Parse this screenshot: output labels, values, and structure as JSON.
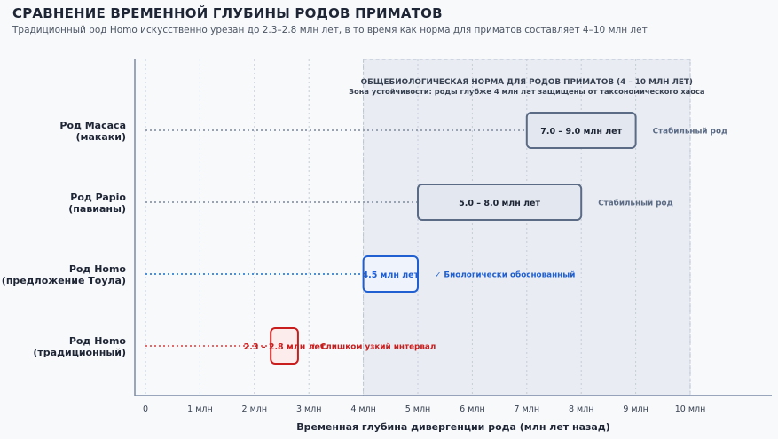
{
  "header": {
    "title": "СРАВНЕНИЕ ВРЕМЕННОЙ ГЛУБИНЫ РОДОВ ПРИМАТОВ",
    "subtitle": "Традиционный род Homo искусственно урезан до 2.3–2.8 млн лет, в то время как норма для приматов составляет 4–10 млн лет"
  },
  "chart_data": {
    "type": "bar",
    "orientation": "horizontal-range",
    "xlabel": "Временная глубина дивергенции рода (млн лет назад)",
    "xlim": [
      0,
      10
    ],
    "x_ticks": [
      "0",
      "1 млн",
      "2 млн",
      "3 млн",
      "4 млн",
      "5 млн",
      "6 млн",
      "7 млн",
      "8 млн",
      "9 млн",
      "10 млн"
    ],
    "grid": true,
    "zone": {
      "range": [
        4,
        10
      ],
      "title": "ОБЩЕБИОЛОГИЧЕСКАЯ НОРМА ДЛЯ РОДОВ ПРИМАТОВ (4 – 10 МЛН ЛЕТ)",
      "subtitle": "Зона устойчивости: роды глубже 4 млн лет защищены от таксономического хаоса"
    },
    "categories": [
      {
        "label_line1": "Род Macaca",
        "label_line2": "(макаки)",
        "range": [
          7.0,
          9.0
        ],
        "bar_label": "7.0 – 9.0 млн лет",
        "status": "Стабильный род",
        "style": "stable"
      },
      {
        "label_line1": "Род Papio",
        "label_line2": "(павианы)",
        "range": [
          5.0,
          8.0
        ],
        "bar_label": "5.0 – 8.0 млн лет",
        "status": "Стабильный род",
        "style": "stable"
      },
      {
        "label_line1": "Род Homo",
        "label_line2": "(предложение Тоула)",
        "range": [
          4.0,
          5.0
        ],
        "bar_label": "4.5 млн лет",
        "status": "✓ Биологически обоснованный",
        "style": "proposal"
      },
      {
        "label_line1": "Род Homo",
        "label_line2": "(традиционный)",
        "range": [
          2.3,
          2.8
        ],
        "bar_label": "2.3 – 2.8 млн лет",
        "status": "⚠ Слишком узкий интервал",
        "style": "narrow"
      }
    ]
  },
  "colors": {
    "stable_stroke": "#5b6b85",
    "stable_fill": "#e3e8f0",
    "stable_dots": "#9aa3b2",
    "proposal_stroke": "#1f5fd1",
    "proposal_fill": "#eef3fc",
    "proposal_dots": "#4a90d9",
    "narrow_stroke": "#c81e1e",
    "narrow_fill": "#fdecec",
    "narrow_dots": "#e36a6a",
    "zone_fill": "#e9edf3",
    "axis": "#7b8aa6"
  }
}
